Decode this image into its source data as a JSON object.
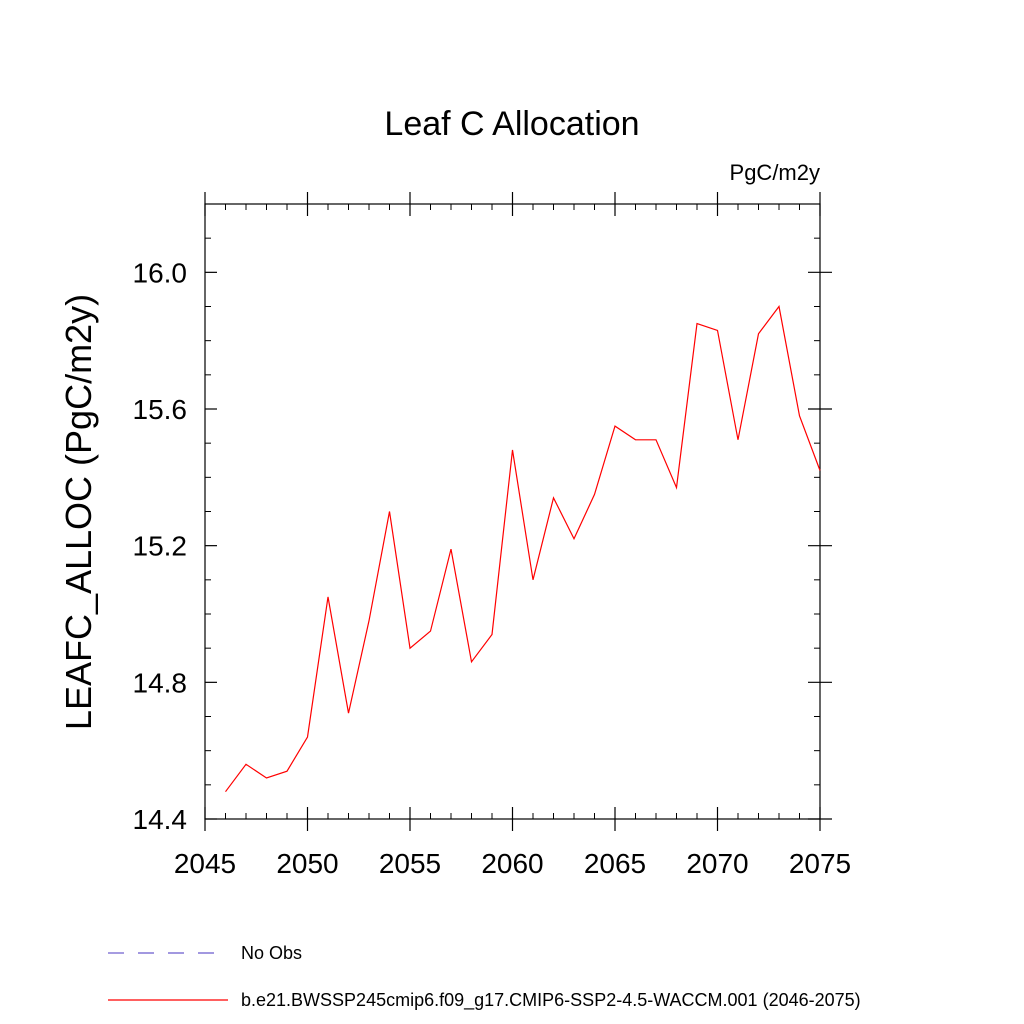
{
  "chart_data": {
    "type": "line",
    "title": "Leaf C Allocation",
    "units": "PgC/m2y",
    "ylabel": "LEAFC_ALLOC  (PgC/m2y)",
    "xlabel": "",
    "xlim": [
      2045,
      2075
    ],
    "ylim": [
      14.4,
      16.2
    ],
    "xticks": [
      2045,
      2050,
      2055,
      2060,
      2065,
      2070,
      2075
    ],
    "xtick_labels": [
      "2045",
      "2050",
      "2055",
      "2060",
      "2065",
      "2070",
      "2075"
    ],
    "yticks": [
      14.4,
      14.8,
      15.2,
      15.6,
      16.0
    ],
    "ytick_labels": [
      "14.4",
      "14.8",
      "15.2",
      "15.6",
      "16.0"
    ],
    "grid": false,
    "legend_position": "bottom",
    "series": [
      {
        "name": "b.e21.BWSSP245cmip6.f09_g17.CMIP6-SSP2-4.5-WACCM.001 (2046-2075)",
        "color": "#ff0000",
        "dash": "solid",
        "x": [
          2046,
          2047,
          2048,
          2049,
          2050,
          2051,
          2052,
          2053,
          2054,
          2055,
          2056,
          2057,
          2058,
          2059,
          2060,
          2061,
          2062,
          2063,
          2064,
          2065,
          2066,
          2067,
          2068,
          2069,
          2070,
          2071,
          2072,
          2073,
          2074,
          2075
        ],
        "y": [
          14.48,
          14.56,
          14.52,
          14.54,
          14.64,
          15.05,
          14.71,
          14.98,
          15.3,
          14.9,
          14.95,
          15.19,
          14.86,
          14.94,
          15.48,
          15.1,
          15.34,
          15.22,
          15.35,
          15.55,
          15.51,
          15.51,
          15.37,
          15.85,
          15.83,
          15.51,
          15.82,
          15.9,
          15.58,
          15.42
        ]
      }
    ],
    "legend": [
      {
        "label": "No Obs",
        "color": "#6a5acd",
        "dash": "dashed"
      },
      {
        "label": "b.e21.BWSSP245cmip6.f09_g17.CMIP6-SSP2-4.5-WACCM.001 (2046-2075)",
        "color": "#ff0000",
        "dash": "solid"
      }
    ]
  }
}
